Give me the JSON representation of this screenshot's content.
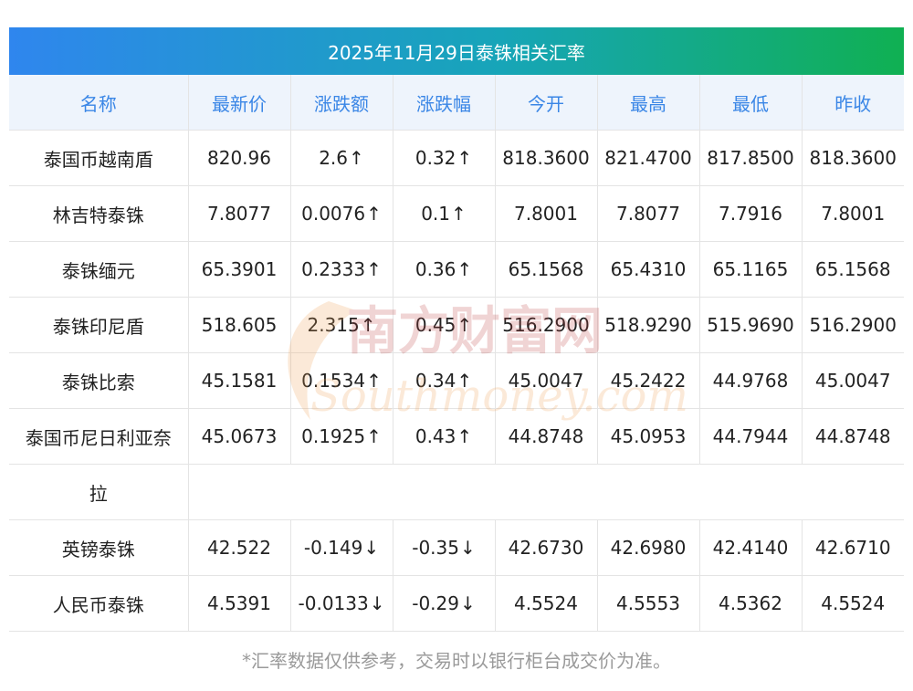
{
  "title": "2025年11月29日泰铢相关汇率",
  "headers": [
    "名称",
    "最新价",
    "涨跌额",
    "涨跌幅",
    "今开",
    "最高",
    "最低",
    "昨收"
  ],
  "rows": [
    {
      "name": "泰国币越南盾",
      "latest": "820.96",
      "change": "2.6",
      "change_pct": "0.32",
      "arrow": "↑",
      "open": "818.3600",
      "high": "821.4700",
      "low": "817.8500",
      "prev_close": "818.3600"
    },
    {
      "name": "林吉特泰铢",
      "latest": "7.8077",
      "change": "0.0076",
      "change_pct": "0.1",
      "arrow": "↑",
      "open": "7.8001",
      "high": "7.8077",
      "low": "7.7916",
      "prev_close": "7.8001"
    },
    {
      "name": "泰铢缅元",
      "latest": "65.3901",
      "change": "0.2333",
      "change_pct": "0.36",
      "arrow": "↑",
      "open": "65.1568",
      "high": "65.4310",
      "low": "65.1165",
      "prev_close": "65.1568"
    },
    {
      "name": "泰铢印尼盾",
      "latest": "518.605",
      "change": "2.315",
      "change_pct": "0.45",
      "arrow": "↑",
      "open": "516.2900",
      "high": "518.9290",
      "low": "515.9690",
      "prev_close": "516.2900"
    },
    {
      "name": "泰铢比索",
      "latest": "45.1581",
      "change": "0.1534",
      "change_pct": "0.34",
      "arrow": "↑",
      "open": "45.0047",
      "high": "45.2422",
      "low": "44.9768",
      "prev_close": "45.0047"
    },
    {
      "name": "泰国币尼日利亚奈",
      "name_wrap": "拉",
      "latest": "45.0673",
      "change": "0.1925",
      "change_pct": "0.43",
      "arrow": "↑",
      "open": "44.8748",
      "high": "45.0953",
      "low": "44.7944",
      "prev_close": "44.8748"
    },
    {
      "name": "英镑泰铢",
      "latest": "42.522",
      "change": "-0.149",
      "change_pct": "-0.35",
      "arrow": "↓",
      "open": "42.6730",
      "high": "42.6980",
      "low": "42.4140",
      "prev_close": "42.6710"
    },
    {
      "name": "人民币泰铢",
      "latest": "4.5391",
      "change": "-0.0133",
      "change_pct": "-0.29",
      "arrow": "↓",
      "open": "4.5524",
      "high": "4.5553",
      "low": "4.5362",
      "prev_close": "4.5524"
    }
  ],
  "watermark": {
    "cn": "南方财富网",
    "en": "Southmoney.com"
  },
  "footnote": "*汇率数据仅供参考，交易时以银行柜台成交价为准。",
  "colors": {
    "up": "#e8251e",
    "down": "#17902e",
    "header_text": "#3a86e6",
    "header_bg": "#eef4fc",
    "banner_start": "#2f86ee",
    "banner_end": "#10b052"
  }
}
